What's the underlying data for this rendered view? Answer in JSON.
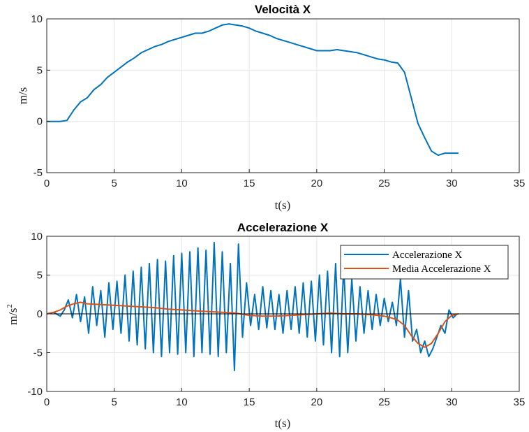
{
  "chart_data": [
    {
      "type": "line",
      "title": "Velocità X",
      "xlabel": "t(s)",
      "ylabel": "m/s",
      "xlim": [
        0,
        35
      ],
      "ylim": [
        -5,
        10
      ],
      "xticks": [
        "0",
        "5",
        "10",
        "15",
        "20",
        "25",
        "30",
        "35"
      ],
      "yticks": [
        "-5",
        "0",
        "5",
        "10"
      ],
      "grid": true,
      "series": [
        {
          "color": "#0072bd",
          "x": [
            0,
            0.5,
            1.0,
            1.5,
            2.0,
            2.5,
            3.0,
            3.5,
            4.0,
            4.5,
            5.0,
            5.5,
            6.0,
            6.5,
            7.0,
            7.5,
            8.0,
            8.5,
            9.0,
            9.5,
            10.0,
            10.5,
            11.0,
            11.5,
            12.0,
            12.5,
            13.0,
            13.5,
            14.0,
            14.5,
            15.0,
            15.5,
            16.0,
            16.5,
            17.0,
            17.5,
            18.0,
            18.5,
            19.0,
            19.5,
            20.0,
            20.5,
            21.0,
            21.5,
            22.0,
            22.5,
            23.0,
            23.5,
            24.0,
            24.5,
            25.0,
            25.5,
            26.0,
            26.5,
            27.0,
            27.5,
            28.0,
            28.5,
            29.0,
            29.5,
            30.0,
            30.5
          ],
          "y": [
            0,
            0,
            0,
            0.1,
            1.1,
            1.9,
            2.3,
            3.1,
            3.6,
            4.3,
            4.8,
            5.3,
            5.8,
            6.2,
            6.7,
            7.0,
            7.3,
            7.5,
            7.8,
            8.0,
            8.2,
            8.4,
            8.6,
            8.6,
            8.8,
            9.1,
            9.4,
            9.5,
            9.4,
            9.3,
            9.1,
            8.8,
            8.6,
            8.4,
            8.1,
            7.9,
            7.7,
            7.5,
            7.3,
            7.1,
            6.9,
            6.9,
            6.9,
            7.0,
            6.9,
            6.8,
            6.7,
            6.5,
            6.3,
            6.1,
            6.0,
            5.8,
            5.7,
            4.8,
            2.3,
            -0.2,
            -1.6,
            -2.9,
            -3.3,
            -3.1,
            -3.1,
            -3.1
          ]
        }
      ]
    },
    {
      "type": "line",
      "title": "Accelerazione X",
      "xlabel": "t(s)",
      "ylabel": "m/s",
      "ylabel_sup": "2",
      "xlim": [
        0,
        35
      ],
      "ylim": [
        -10,
        10
      ],
      "xticks": [
        "0",
        "5",
        "10",
        "15",
        "20",
        "25",
        "30",
        "35"
      ],
      "yticks": [
        "-10",
        "-5",
        "0",
        "5",
        "10"
      ],
      "grid": true,
      "legend": "top-right",
      "baseline": 0,
      "series": [
        {
          "name": "Accelerazione X",
          "color": "#0072bd",
          "x": [
            0,
            0.5,
            1.0,
            1.3,
            1.6,
            1.9,
            2.2,
            2.5,
            2.8,
            3.1,
            3.4,
            3.7,
            4.0,
            4.3,
            4.6,
            4.9,
            5.2,
            5.5,
            5.8,
            6.1,
            6.4,
            6.7,
            7.0,
            7.3,
            7.6,
            7.9,
            8.2,
            8.5,
            8.8,
            9.1,
            9.4,
            9.7,
            10.0,
            10.3,
            10.6,
            10.9,
            11.2,
            11.5,
            11.8,
            12.1,
            12.4,
            12.7,
            13.0,
            13.3,
            13.6,
            13.9,
            14.2,
            14.5,
            14.8,
            15.1,
            15.4,
            15.7,
            16.0,
            16.3,
            16.6,
            16.9,
            17.2,
            17.5,
            17.8,
            18.1,
            18.4,
            18.7,
            19.0,
            19.3,
            19.6,
            19.9,
            20.2,
            20.5,
            20.8,
            21.1,
            21.4,
            21.7,
            22.0,
            22.3,
            22.6,
            22.9,
            23.2,
            23.5,
            23.8,
            24.1,
            24.4,
            24.7,
            25.0,
            25.3,
            25.6,
            25.9,
            26.2,
            26.5,
            26.8,
            27.1,
            27.4,
            27.7,
            28.0,
            28.3,
            28.6,
            28.9,
            29.2,
            29.5,
            29.8,
            30.1,
            30.4
          ],
          "y": [
            0,
            0.2,
            -0.3,
            0.5,
            1.8,
            -0.5,
            2.5,
            -1.0,
            2.2,
            -2.5,
            3.5,
            -1.5,
            3.0,
            -3.0,
            4.0,
            -2.0,
            4.2,
            -2.5,
            5.0,
            -3.5,
            5.5,
            -4.0,
            6.0,
            -4.5,
            6.5,
            -5.0,
            7.0,
            -5.5,
            6.8,
            -5.0,
            7.5,
            -5.2,
            7.8,
            -5.0,
            8.0,
            -5.5,
            8.5,
            -5.0,
            8.2,
            -5.2,
            9.2,
            -5.5,
            8.0,
            -5.0,
            6.5,
            -7.3,
            9.0,
            -3.0,
            4.0,
            -1.5,
            2.5,
            -2.0,
            3.5,
            -1.8,
            3.0,
            -2.0,
            2.5,
            -2.5,
            3.0,
            -2.0,
            3.5,
            -2.5,
            4.0,
            -3.0,
            4.2,
            -3.5,
            5.0,
            -4.0,
            5.5,
            -5.0,
            6.5,
            -5.5,
            6.0,
            -5.0,
            4.5,
            -3.5,
            3.5,
            -2.5,
            3.0,
            -2.0,
            2.5,
            -1.5,
            2.0,
            -1.0,
            1.5,
            -1.5,
            4.5,
            -3.0,
            3.0,
            -3.5,
            -2.0,
            -5.0,
            -3.5,
            -5.5,
            -4.5,
            -3.0,
            -1.5,
            -2.5,
            0.5,
            -0.5,
            0
          ]
        },
        {
          "name": "Media Accelerazione X",
          "color": "#d95319",
          "x": [
            0,
            0.5,
            1.0,
            1.5,
            2.0,
            2.5,
            3.0,
            4.0,
            5.0,
            6.0,
            7.0,
            8.0,
            9.0,
            10.0,
            11.0,
            12.0,
            13.0,
            14.0,
            15.0,
            16.0,
            17.0,
            18.0,
            19.0,
            20.0,
            21.0,
            22.0,
            23.0,
            24.0,
            25.0,
            25.5,
            26.0,
            26.5,
            27.0,
            27.5,
            28.0,
            28.5,
            29.0,
            29.5,
            30.0,
            30.5
          ],
          "y": [
            0,
            0.2,
            0.5,
            1.0,
            1.3,
            1.5,
            1.3,
            1.2,
            1.1,
            1.0,
            0.9,
            0.8,
            0.6,
            0.5,
            0.4,
            0.3,
            0.2,
            0.1,
            -0.2,
            -0.3,
            -0.3,
            -0.2,
            -0.1,
            0,
            0.1,
            0,
            0,
            -0.1,
            -0.3,
            -0.5,
            -0.8,
            -1.5,
            -2.8,
            -3.8,
            -4.3,
            -3.8,
            -2.5,
            -1.0,
            -0.2,
            0
          ]
        }
      ]
    }
  ]
}
